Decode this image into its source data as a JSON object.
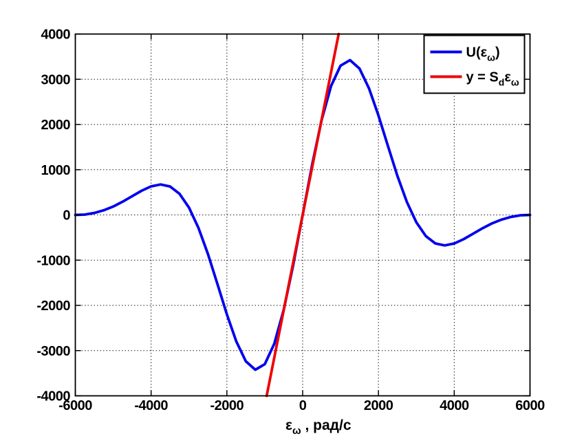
{
  "figure": {
    "background": "#ffffff"
  },
  "chart_data": {
    "type": "line",
    "title": "",
    "xlabel_parts": [
      {
        "t": "ε",
        "sub": false
      },
      {
        "t": "ω",
        "sub": true
      },
      {
        "t": " , рад/с",
        "sub": false
      }
    ],
    "ylabel": "",
    "xlim": [
      -6000,
      6000
    ],
    "ylim": [
      -4000,
      4000
    ],
    "xticks": [
      -6000,
      -4000,
      -2000,
      0,
      2000,
      4000,
      6000
    ],
    "yticks": [
      -4000,
      -3000,
      -2000,
      -1000,
      0,
      1000,
      2000,
      3000,
      4000
    ],
    "grid": "dotted",
    "axis_color": "#000000",
    "grid_color": "#1a1a1a",
    "legend": {
      "position": "top-right",
      "border_color": "#000000",
      "background": "#ffffff",
      "entries": [
        {
          "color": "#0000EE",
          "label_parts": [
            {
              "t": "U(ε",
              "sub": false
            },
            {
              "t": "ω",
              "sub": true
            },
            {
              "t": ")",
              "sub": false
            }
          ]
        },
        {
          "color": "#EE0000",
          "label_parts": [
            {
              "t": "y = S",
              "sub": false
            },
            {
              "t": "d",
              "sub": true
            },
            {
              "t": "ε",
              "sub": false
            },
            {
              "t": "ω",
              "sub": true
            }
          ]
        }
      ]
    },
    "series": [
      {
        "name": "U(e_w)",
        "color": "#0000EE",
        "width": 3.8,
        "x": [
          -6000,
          -5750,
          -5500,
          -5250,
          -5000,
          -4750,
          -4500,
          -4250,
          -4000,
          -3750,
          -3500,
          -3250,
          -3000,
          -2750,
          -2500,
          -2250,
          -2000,
          -1750,
          -1500,
          -1250,
          -1000,
          -750,
          -500,
          -250,
          0,
          250,
          500,
          750,
          1000,
          1250,
          1500,
          1750,
          2000,
          2250,
          2500,
          2750,
          3000,
          3250,
          3500,
          3750,
          4000,
          4250,
          4500,
          4750,
          5000,
          5250,
          5500,
          5750,
          6000
        ],
        "y": [
          0,
          8,
          43,
          103,
          186,
          293,
          414,
          535,
          632,
          674,
          630,
          467,
          163,
          -287,
          -864,
          -1525,
          -2199,
          -2800,
          -3236,
          -3423,
          -3301,
          -2850,
          -2098,
          -1111,
          0,
          1111,
          2098,
          2850,
          3301,
          3423,
          3236,
          2800,
          2199,
          1525,
          864,
          287,
          -163,
          -467,
          -630,
          -674,
          -632,
          -535,
          -414,
          -293,
          -186,
          -103,
          -43,
          -8,
          0
        ]
      },
      {
        "name": "y = S_d * e_w",
        "color": "#EE0000",
        "width": 3.8,
        "x": [
          -950,
          950
        ],
        "y": [
          -4000,
          4000
        ]
      }
    ]
  }
}
